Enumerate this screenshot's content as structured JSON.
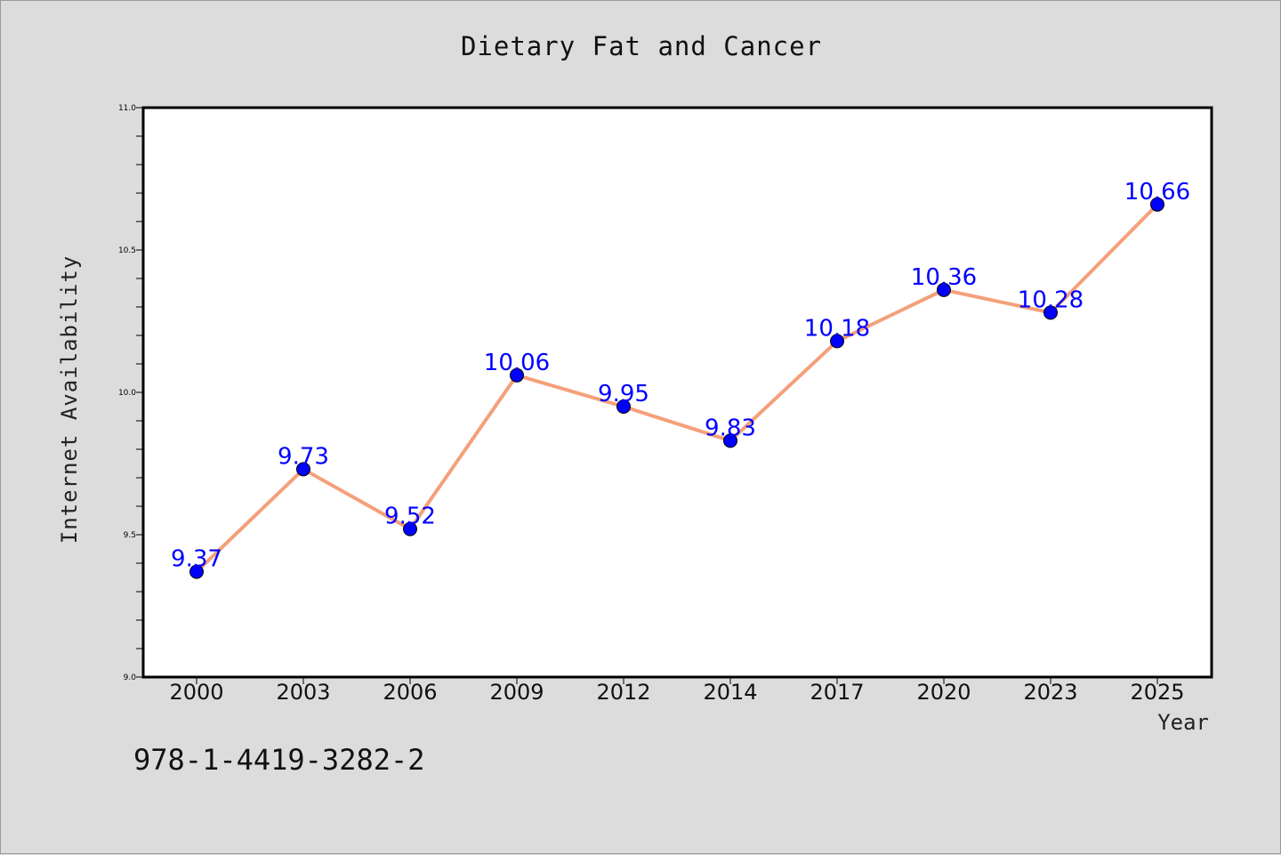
{
  "chart_data": {
    "type": "line",
    "title": "Dietary Fat and Cancer",
    "xlabel": "Year",
    "ylabel": "Internet Availability",
    "categories": [
      "2000",
      "2003",
      "2006",
      "2009",
      "2012",
      "2014",
      "2017",
      "2020",
      "2023",
      "2025"
    ],
    "values": [
      9.37,
      9.73,
      9.52,
      10.06,
      9.95,
      9.83,
      10.18,
      10.36,
      10.28,
      10.66
    ],
    "value_labels": [
      "9.37",
      "9.73",
      "9.52",
      "10.06",
      "9.95",
      "9.83",
      "10.18",
      "10.36",
      "10.28",
      "10.66"
    ],
    "ylim": [
      9.0,
      11.0
    ],
    "yticks": [
      "9.0",
      "9.5",
      "10.0",
      "10.5",
      "11.0"
    ],
    "grid": false,
    "line_color": "#f4a07a",
    "marker_color": "#0000ff",
    "label_color": "#0000ff"
  },
  "footer": {
    "isbn": "978-1-4419-3282-2"
  }
}
